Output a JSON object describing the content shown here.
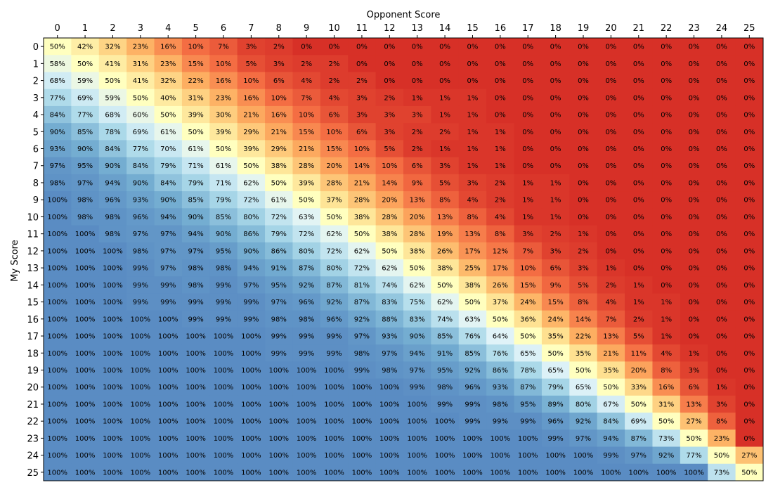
{
  "chart_data": {
    "type": "heatmap",
    "xlabel": "Opponent Score",
    "ylabel": "My Score",
    "x": [
      0,
      1,
      2,
      3,
      4,
      5,
      6,
      7,
      8,
      9,
      10,
      11,
      12,
      13,
      14,
      15,
      16,
      17,
      18,
      19,
      20,
      21,
      22,
      23,
      24,
      25
    ],
    "y": [
      0,
      1,
      2,
      3,
      4,
      5,
      6,
      7,
      8,
      9,
      10,
      11,
      12,
      13,
      14,
      15,
      16,
      17,
      18,
      19,
      20,
      21,
      22,
      23,
      24,
      25
    ],
    "x_axis_position": "top",
    "value_unit": "%",
    "colormap": "RdYlBu",
    "color_range": [
      0,
      100
    ],
    "grid": false,
    "legend": "none",
    "values": [
      [
        50,
        42,
        32,
        23,
        16,
        10,
        7,
        3,
        2,
        0,
        0,
        0,
        0,
        0,
        0,
        0,
        0,
        0,
        0,
        0,
        0,
        0,
        0,
        0,
        0,
        0
      ],
      [
        58,
        50,
        41,
        31,
        23,
        15,
        10,
        5,
        3,
        2,
        2,
        0,
        0,
        0,
        0,
        0,
        0,
        0,
        0,
        0,
        0,
        0,
        0,
        0,
        0,
        0
      ],
      [
        68,
        59,
        50,
        41,
        32,
        22,
        16,
        10,
        6,
        4,
        2,
        2,
        0,
        0,
        0,
        0,
        0,
        0,
        0,
        0,
        0,
        0,
        0,
        0,
        0,
        0
      ],
      [
        77,
        69,
        59,
        50,
        40,
        31,
        23,
        16,
        10,
        7,
        4,
        3,
        2,
        1,
        1,
        1,
        0,
        0,
        0,
        0,
        0,
        0,
        0,
        0,
        0,
        0
      ],
      [
        84,
        77,
        68,
        60,
        50,
        39,
        30,
        21,
        16,
        10,
        6,
        3,
        3,
        3,
        1,
        1,
        0,
        0,
        0,
        0,
        0,
        0,
        0,
        0,
        0,
        0
      ],
      [
        90,
        85,
        78,
        69,
        61,
        50,
        39,
        29,
        21,
        15,
        10,
        6,
        3,
        2,
        2,
        1,
        1,
        0,
        0,
        0,
        0,
        0,
        0,
        0,
        0,
        0
      ],
      [
        93,
        90,
        84,
        77,
        70,
        61,
        50,
        39,
        29,
        21,
        15,
        10,
        5,
        2,
        1,
        1,
        1,
        0,
        0,
        0,
        0,
        0,
        0,
        0,
        0,
        0
      ],
      [
        97,
        95,
        90,
        84,
        79,
        71,
        61,
        50,
        38,
        28,
        20,
        14,
        10,
        6,
        3,
        1,
        1,
        0,
        0,
        0,
        0,
        0,
        0,
        0,
        0,
        0
      ],
      [
        98,
        97,
        94,
        90,
        84,
        79,
        71,
        62,
        50,
        39,
        28,
        21,
        14,
        9,
        5,
        3,
        2,
        1,
        1,
        0,
        0,
        0,
        0,
        0,
        0,
        0
      ],
      [
        100,
        98,
        96,
        93,
        90,
        85,
        79,
        72,
        61,
        50,
        37,
        28,
        20,
        13,
        8,
        4,
        2,
        1,
        1,
        0,
        0,
        0,
        0,
        0,
        0,
        0
      ],
      [
        100,
        98,
        98,
        96,
        94,
        90,
        85,
        80,
        72,
        63,
        50,
        38,
        28,
        20,
        13,
        8,
        4,
        1,
        1,
        0,
        0,
        0,
        0,
        0,
        0,
        0
      ],
      [
        100,
        100,
        98,
        97,
        97,
        94,
        90,
        86,
        79,
        72,
        62,
        50,
        38,
        28,
        19,
        13,
        8,
        3,
        2,
        1,
        0,
        0,
        0,
        0,
        0,
        0
      ],
      [
        100,
        100,
        100,
        98,
        97,
        97,
        95,
        90,
        86,
        80,
        72,
        62,
        50,
        38,
        26,
        17,
        12,
        7,
        3,
        2,
        0,
        0,
        0,
        0,
        0,
        0
      ],
      [
        100,
        100,
        100,
        99,
        97,
        98,
        98,
        94,
        91,
        87,
        80,
        72,
        62,
        50,
        38,
        25,
        17,
        10,
        6,
        3,
        1,
        0,
        0,
        0,
        0,
        0
      ],
      [
        100,
        100,
        100,
        99,
        99,
        98,
        99,
        97,
        95,
        92,
        87,
        81,
        74,
        62,
        50,
        38,
        26,
        15,
        9,
        5,
        2,
        1,
        0,
        0,
        0,
        0
      ],
      [
        100,
        100,
        100,
        99,
        99,
        99,
        99,
        99,
        97,
        96,
        92,
        87,
        83,
        75,
        62,
        50,
        37,
        24,
        15,
        8,
        4,
        1,
        1,
        0,
        0,
        0
      ],
      [
        100,
        100,
        100,
        100,
        100,
        99,
        99,
        99,
        98,
        98,
        96,
        92,
        88,
        83,
        74,
        63,
        50,
        36,
        24,
        14,
        7,
        2,
        1,
        0,
        0,
        0
      ],
      [
        100,
        100,
        100,
        100,
        100,
        100,
        100,
        100,
        99,
        99,
        99,
        97,
        93,
        90,
        85,
        76,
        64,
        50,
        35,
        22,
        13,
        5,
        1,
        0,
        0,
        0
      ],
      [
        100,
        100,
        100,
        100,
        100,
        100,
        100,
        100,
        99,
        99,
        99,
        98,
        97,
        94,
        91,
        85,
        76,
        65,
        50,
        35,
        21,
        11,
        4,
        1,
        0,
        0
      ],
      [
        100,
        100,
        100,
        100,
        100,
        100,
        100,
        100,
        100,
        100,
        100,
        99,
        98,
        97,
        95,
        92,
        86,
        78,
        65,
        50,
        35,
        20,
        8,
        3,
        0,
        0
      ],
      [
        100,
        100,
        100,
        100,
        100,
        100,
        100,
        100,
        100,
        100,
        100,
        100,
        100,
        99,
        98,
        96,
        93,
        87,
        79,
        65,
        50,
        33,
        16,
        6,
        1,
        0
      ],
      [
        100,
        100,
        100,
        100,
        100,
        100,
        100,
        100,
        100,
        100,
        100,
        100,
        100,
        100,
        99,
        99,
        98,
        95,
        89,
        80,
        67,
        50,
        31,
        13,
        3,
        0
      ],
      [
        100,
        100,
        100,
        100,
        100,
        100,
        100,
        100,
        100,
        100,
        100,
        100,
        100,
        100,
        100,
        99,
        99,
        99,
        96,
        92,
        84,
        69,
        50,
        27,
        8,
        0
      ],
      [
        100,
        100,
        100,
        100,
        100,
        100,
        100,
        100,
        100,
        100,
        100,
        100,
        100,
        100,
        100,
        100,
        100,
        100,
        99,
        97,
        94,
        87,
        73,
        50,
        23,
        0
      ],
      [
        100,
        100,
        100,
        100,
        100,
        100,
        100,
        100,
        100,
        100,
        100,
        100,
        100,
        100,
        100,
        100,
        100,
        100,
        100,
        100,
        99,
        97,
        92,
        77,
        50,
        27
      ],
      [
        100,
        100,
        100,
        100,
        100,
        100,
        100,
        100,
        100,
        100,
        100,
        100,
        100,
        100,
        100,
        100,
        100,
        100,
        100,
        100,
        100,
        100,
        100,
        100,
        73,
        50
      ]
    ]
  }
}
